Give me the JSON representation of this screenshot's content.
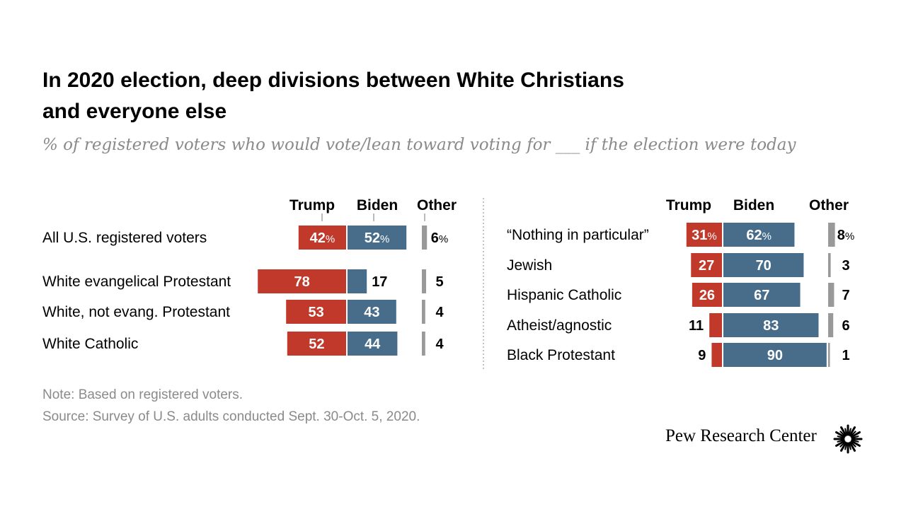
{
  "title_line1": "In 2020 election, deep divisions between White Christians",
  "title_line2": "and everyone else",
  "subtitle": "% of registered voters who would vote/lean toward voting for ___ if the election were today",
  "note": "Note: Based on registered voters.",
  "source": "Source: Survey of U.S. adults conducted Sept. 30-Oct. 5, 2020.",
  "brand": "Pew Research Center",
  "logo_icon": "sunburst-logo-icon",
  "colors": {
    "trump": "#c0392b",
    "biden": "#476d8a",
    "other": "#999999"
  },
  "chart_data": {
    "type": "bar",
    "subtype": "diverging-stacked",
    "series_names": [
      "Trump",
      "Biden",
      "Other"
    ],
    "panels": [
      {
        "categories": [
          "All U.S. registered voters",
          "White evangelical Protestant",
          "White, not evang. Protestant",
          "White Catholic"
        ],
        "series": [
          {
            "name": "Trump",
            "values": [
              42,
              78,
              53,
              52
            ]
          },
          {
            "name": "Biden",
            "values": [
              52,
              17,
              43,
              44
            ]
          },
          {
            "name": "Other",
            "values": [
              6,
              5,
              4,
              4
            ]
          }
        ],
        "value_labels": [
          [
            "42%",
            "52%",
            "6%"
          ],
          [
            "78",
            "17",
            "5"
          ],
          [
            "53",
            "43",
            "4"
          ],
          [
            "52",
            "44",
            "4"
          ]
        ]
      },
      {
        "categories": [
          "“Nothing in particular”",
          "Jewish",
          "Hispanic Catholic",
          "Atheist/agnostic",
          "Black Protestant"
        ],
        "series": [
          {
            "name": "Trump",
            "values": [
              31,
              27,
              26,
              11,
              9
            ]
          },
          {
            "name": "Biden",
            "values": [
              62,
              70,
              67,
              83,
              90
            ]
          },
          {
            "name": "Other",
            "values": [
              8,
              3,
              7,
              6,
              1
            ]
          }
        ],
        "value_labels": [
          [
            "31%",
            "62%",
            "8%"
          ],
          [
            "27",
            "70",
            "3"
          ],
          [
            "26",
            "67",
            "7"
          ],
          [
            "11",
            "83",
            "6"
          ],
          [
            "9",
            "90",
            "1"
          ]
        ]
      }
    ]
  }
}
